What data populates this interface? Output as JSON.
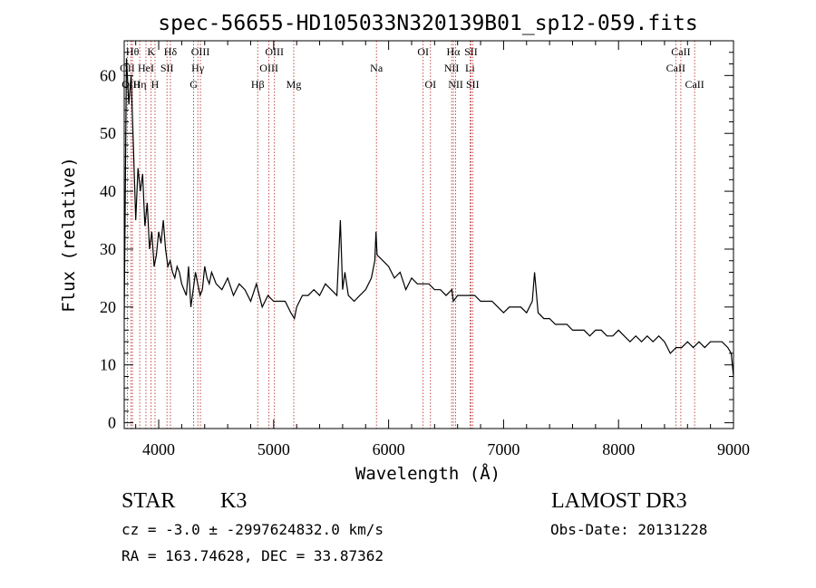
{
  "chart_data": {
    "type": "line",
    "title": "spec-56655-HD105033N320139B01_sp12-059.fits",
    "xlabel": "Wavelength (Å)",
    "ylabel": "Flux (relative)",
    "xlim": [
      3700,
      9000
    ],
    "ylim": [
      -1,
      66
    ],
    "xticks": [
      4000,
      5000,
      6000,
      7000,
      8000,
      9000
    ],
    "yticks": [
      0,
      10,
      20,
      30,
      40,
      50,
      60
    ],
    "grid": false,
    "series": [
      {
        "x": [
          3700,
          3720,
          3740,
          3760,
          3780,
          3800,
          3820,
          3840,
          3860,
          3880,
          3900,
          3920,
          3940,
          3960,
          3980,
          4000,
          4020,
          4040,
          4060,
          4080,
          4100,
          4120,
          4140,
          4160,
          4180,
          4200,
          4220,
          4240,
          4260,
          4280,
          4300,
          4320,
          4340,
          4360,
          4380,
          4400,
          4420,
          4440,
          4460,
          4480,
          4500,
          4550,
          4600,
          4650,
          4700,
          4750,
          4800,
          4850,
          4900,
          4950,
          5000,
          5050,
          5100,
          5150,
          5180,
          5200,
          5250,
          5300,
          5350,
          5400,
          5450,
          5500,
          5550,
          5580,
          5600,
          5620,
          5650,
          5700,
          5750,
          5800,
          5850,
          5880,
          5890,
          5900,
          5950,
          6000,
          6050,
          6100,
          6150,
          6200,
          6250,
          6300,
          6350,
          6400,
          6450,
          6500,
          6550,
          6563,
          6600,
          6650,
          6700,
          6750,
          6800,
          6850,
          6900,
          6950,
          7000,
          7050,
          7100,
          7150,
          7200,
          7250,
          7270,
          7300,
          7350,
          7400,
          7450,
          7500,
          7550,
          7600,
          7650,
          7700,
          7750,
          7800,
          7850,
          7900,
          7950,
          8000,
          8050,
          8100,
          8150,
          8200,
          8250,
          8300,
          8350,
          8400,
          8450,
          8500,
          8550,
          8600,
          8650,
          8700,
          8750,
          8800,
          8850,
          8900,
          8950,
          8980,
          9000
        ],
        "y": [
          18,
          63,
          55,
          60,
          48,
          35,
          44,
          40,
          43,
          34,
          38,
          30,
          33,
          27,
          29,
          33,
          31,
          35,
          30,
          27,
          28,
          26,
          25,
          27,
          26,
          24,
          23,
          22,
          27,
          20,
          23,
          26,
          24,
          22,
          23,
          27,
          25,
          24,
          26,
          25,
          24,
          23,
          25,
          22,
          24,
          23,
          21,
          24,
          20,
          22,
          21,
          21,
          21,
          19,
          18,
          20,
          22,
          22,
          23,
          22,
          24,
          23,
          22,
          35,
          23,
          26,
          22,
          21,
          22,
          23,
          25,
          28,
          33,
          29,
          28,
          27,
          25,
          26,
          23,
          25,
          24,
          24,
          24,
          23,
          23,
          22,
          23,
          21,
          22,
          22,
          22,
          22,
          21,
          21,
          21,
          20,
          19,
          20,
          20,
          20,
          19,
          21,
          26,
          19,
          18,
          18,
          17,
          17,
          17,
          16,
          16,
          16,
          15,
          16,
          16,
          15,
          15,
          16,
          15,
          14,
          15,
          14,
          15,
          14,
          15,
          14,
          12,
          13,
          13,
          14,
          13,
          14,
          13,
          14,
          14,
          14,
          13,
          12,
          8
        ]
      }
    ],
    "lines": [
      {
        "label": "OII",
        "x": 3727,
        "row": 1
      },
      {
        "label": "OIII",
        "x": 3760,
        "row": 2
      },
      {
        "label": "Hθ",
        "x": 3772,
        "row": 0
      },
      {
        "label": "Hη",
        "x": 3835,
        "row": 2
      },
      {
        "label": "HeI",
        "x": 3889,
        "row": 1
      },
      {
        "label": "K",
        "x": 3934,
        "row": 0
      },
      {
        "label": "H",
        "x": 3968,
        "row": 2
      },
      {
        "label": "SII",
        "x": 4072,
        "row": 1
      },
      {
        "label": "Hδ",
        "x": 4102,
        "row": 0
      },
      {
        "label": "G",
        "x": 4304,
        "row": 2
      },
      {
        "label": "Hγ",
        "x": 4340,
        "row": 1
      },
      {
        "label": "OIII",
        "x": 4363,
        "row": 0
      },
      {
        "label": "Hβ",
        "x": 4861,
        "row": 2
      },
      {
        "label": "OIII",
        "x": 4959,
        "row": 1
      },
      {
        "label": "OIII",
        "x": 5007,
        "row": 0
      },
      {
        "label": "Mg",
        "x": 5175,
        "row": 2
      },
      {
        "label": "Na",
        "x": 5894,
        "row": 1
      },
      {
        "label": "OI",
        "x": 6300,
        "row": 0
      },
      {
        "label": "OI",
        "x": 6364,
        "row": 2
      },
      {
        "label": "NII",
        "x": 6548,
        "row": 1
      },
      {
        "label": "Hα",
        "x": 6563,
        "row": 0
      },
      {
        "label": "NII",
        "x": 6583,
        "row": 2
      },
      {
        "label": "Li",
        "x": 6708,
        "row": 1
      },
      {
        "label": "SII",
        "x": 6716,
        "row": 0
      },
      {
        "label": "SII",
        "x": 6731,
        "row": 2
      },
      {
        "label": "CaII",
        "x": 8498,
        "row": 1
      },
      {
        "label": "CaII",
        "x": 8542,
        "row": 0
      },
      {
        "label": "CaII",
        "x": 8662,
        "row": 2
      }
    ],
    "annotations": {
      "class": "STAR",
      "subclass": "K3",
      "survey": "LAMOST DR3",
      "cz": "cz = -3.0 ± -2997624832.0 km/s",
      "obsdate": "Obs-Date: 20131228",
      "radec": "RA = 163.74628, DEC =  33.87362"
    },
    "colors": {
      "spectrum": "#000000",
      "lines": "#b22222",
      "axes": "#000000",
      "background": "#ffffff"
    }
  }
}
